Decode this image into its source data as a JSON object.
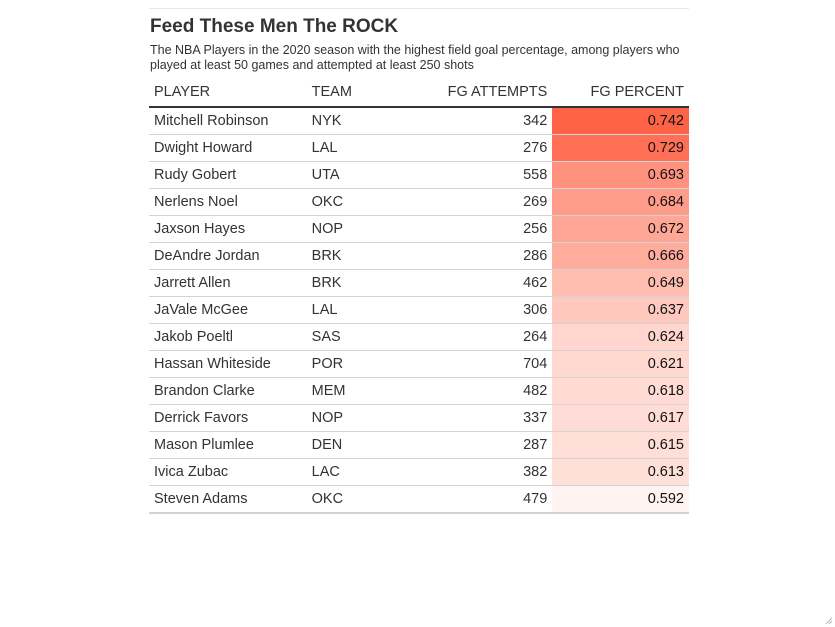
{
  "title": "Feed These Men The ROCK",
  "subtitle": "The NBA Players in the 2020 season with the highest field goal percentage, among players who played at least 50 games and attempted at least 250 shots",
  "columns": {
    "player": "PLAYER",
    "team": "TEAM",
    "fg_attempts": "FG ATTEMPTS",
    "fg_percent": "FG PERCENT"
  },
  "colors": {
    "scale_low": "#fff4f1",
    "scale_high": "#ff6347"
  },
  "chart_data": {
    "type": "table",
    "title": "Feed These Men The ROCK",
    "subtitle": "The NBA Players in the 2020 season with the highest field goal percentage, among players who played at least 50 games and attempted at least 250 shots",
    "columns": [
      "PLAYER",
      "TEAM",
      "FG ATTEMPTS",
      "FG PERCENT"
    ],
    "rows": [
      {
        "player": "Mitchell Robinson",
        "team": "NYK",
        "fg_attempts": "342",
        "fg_percent": "0.742"
      },
      {
        "player": "Dwight Howard",
        "team": "LAL",
        "fg_attempts": "276",
        "fg_percent": "0.729"
      },
      {
        "player": "Rudy Gobert",
        "team": "UTA",
        "fg_attempts": "558",
        "fg_percent": "0.693"
      },
      {
        "player": "Nerlens Noel",
        "team": "OKC",
        "fg_attempts": "269",
        "fg_percent": "0.684"
      },
      {
        "player": "Jaxson Hayes",
        "team": "NOP",
        "fg_attempts": "256",
        "fg_percent": "0.672"
      },
      {
        "player": "DeAndre Jordan",
        "team": "BRK",
        "fg_attempts": "286",
        "fg_percent": "0.666"
      },
      {
        "player": "Jarrett Allen",
        "team": "BRK",
        "fg_attempts": "462",
        "fg_percent": "0.649"
      },
      {
        "player": "JaVale McGee",
        "team": "LAL",
        "fg_attempts": "306",
        "fg_percent": "0.637"
      },
      {
        "player": "Jakob Poeltl",
        "team": "SAS",
        "fg_attempts": "264",
        "fg_percent": "0.624"
      },
      {
        "player": "Hassan Whiteside",
        "team": "POR",
        "fg_attempts": "704",
        "fg_percent": "0.621"
      },
      {
        "player": "Brandon Clarke",
        "team": "MEM",
        "fg_attempts": "482",
        "fg_percent": "0.618"
      },
      {
        "player": "Derrick Favors",
        "team": "NOP",
        "fg_attempts": "337",
        "fg_percent": "0.617"
      },
      {
        "player": "Mason Plumlee",
        "team": "DEN",
        "fg_attempts": "287",
        "fg_percent": "0.615"
      },
      {
        "player": "Ivica Zubac",
        "team": "LAC",
        "fg_attempts": "382",
        "fg_percent": "0.613"
      },
      {
        "player": "Steven Adams",
        "team": "OKC",
        "fg_attempts": "479",
        "fg_percent": "0.592"
      }
    ]
  }
}
